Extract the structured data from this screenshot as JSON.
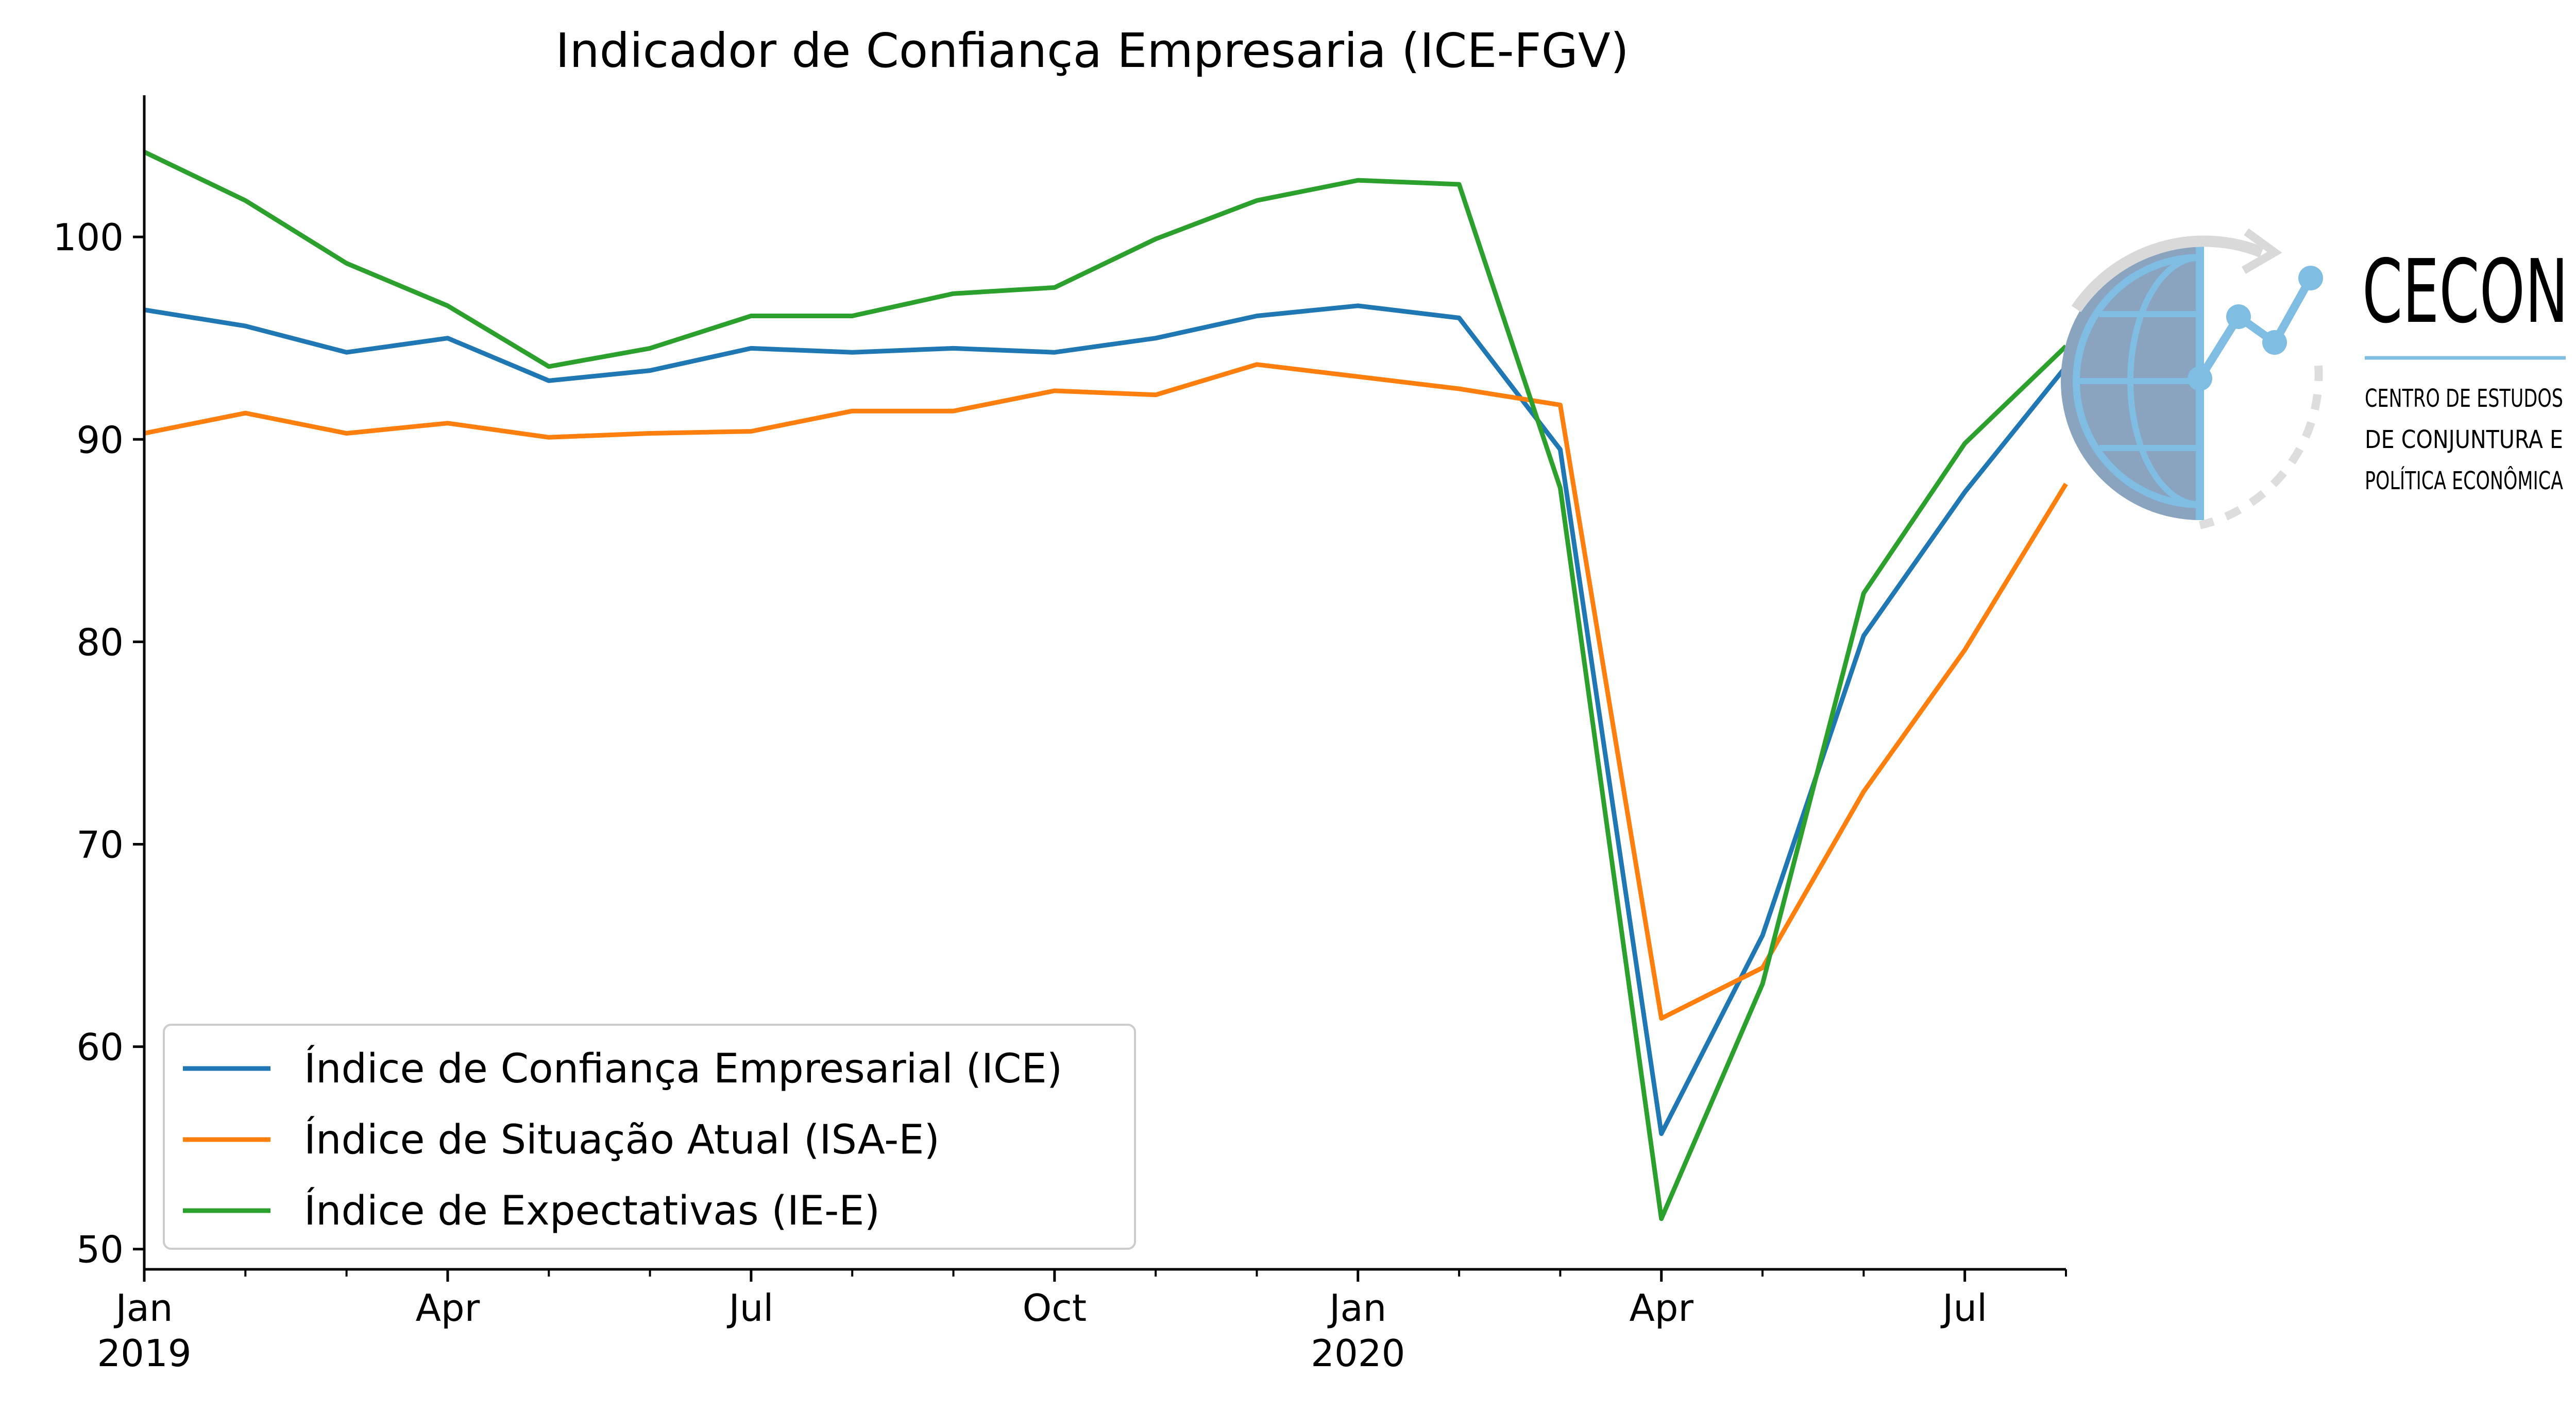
{
  "chart_data": {
    "type": "line",
    "title": "Indicador de Confiança Empresaria (ICE-FGV)",
    "xlabel": "",
    "ylabel": "",
    "x": [
      "2019-01",
      "2019-02",
      "2019-03",
      "2019-04",
      "2019-05",
      "2019-06",
      "2019-07",
      "2019-08",
      "2019-09",
      "2019-10",
      "2019-11",
      "2019-12",
      "2020-01",
      "2020-02",
      "2020-03",
      "2020-04",
      "2020-05",
      "2020-06",
      "2020-07",
      "2020-08"
    ],
    "ylim": [
      49,
      107
    ],
    "yticks": [
      50,
      60,
      70,
      80,
      90,
      100
    ],
    "xticks": [
      {
        "index": 0,
        "label": "Jan",
        "sublabel": "2019"
      },
      {
        "index": 3,
        "label": "Apr",
        "sublabel": ""
      },
      {
        "index": 6,
        "label": "Jul",
        "sublabel": ""
      },
      {
        "index": 9,
        "label": "Oct",
        "sublabel": ""
      },
      {
        "index": 12,
        "label": "Jan",
        "sublabel": "2020"
      },
      {
        "index": 15,
        "label": "Apr",
        "sublabel": ""
      },
      {
        "index": 18,
        "label": "Jul",
        "sublabel": ""
      }
    ],
    "grid": false,
    "legend_position": "lower-left",
    "series": [
      {
        "name": "Índice de Confiança Empresarial (ICE)",
        "color": "#1f77b4",
        "values": [
          96.4,
          95.6,
          94.3,
          95.0,
          92.9,
          93.4,
          94.5,
          94.3,
          94.5,
          94.3,
          95.0,
          96.1,
          96.6,
          96.0,
          89.5,
          55.7,
          65.5,
          80.3,
          87.4,
          93.6
        ]
      },
      {
        "name": "Índice de Situação Atual (ISA-E)",
        "color": "#ff7f0e",
        "values": [
          90.3,
          91.3,
          90.3,
          90.8,
          90.1,
          90.3,
          90.4,
          91.4,
          91.4,
          92.4,
          92.2,
          93.7,
          93.1,
          92.5,
          91.7,
          61.4,
          63.9,
          72.6,
          79.6,
          87.8
        ]
      },
      {
        "name": "Índice de Expectativas (IE-E)",
        "color": "#2ca02c",
        "values": [
          104.2,
          101.8,
          98.7,
          96.6,
          93.6,
          94.5,
          96.1,
          96.1,
          97.2,
          97.5,
          99.9,
          101.8,
          102.8,
          102.6,
          87.6,
          51.5,
          63.1,
          82.4,
          89.8,
          94.6
        ]
      }
    ]
  },
  "logo": {
    "name": "CECON",
    "line1": "CENTRO DE ESTUDOS",
    "line2": "DE CONJUNTURA E",
    "line3": "POLÍTICA ECONÔMICA",
    "color": "#7fbde3",
    "globe_color": "#8aa3bf"
  }
}
